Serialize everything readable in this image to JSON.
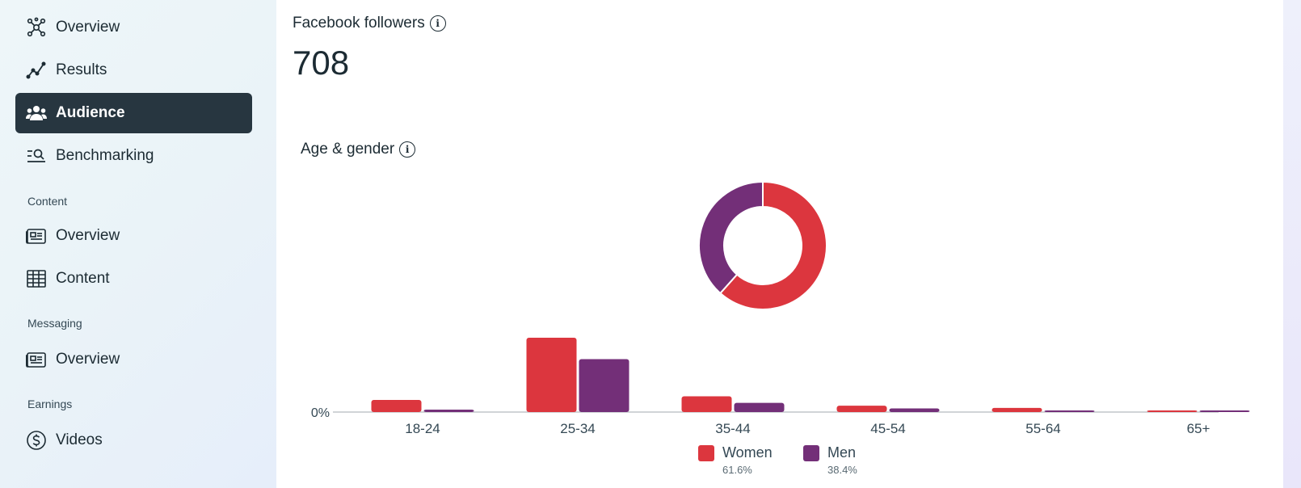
{
  "sidebar": {
    "items": [
      {
        "label": "Overview",
        "icon": "network-icon"
      },
      {
        "label": "Results",
        "icon": "trend-line-icon"
      },
      {
        "label": "Audience",
        "icon": "people-icon",
        "active": true
      },
      {
        "label": "Benchmarking",
        "icon": "search-list-icon"
      }
    ],
    "sections": [
      {
        "label": "Content",
        "items": [
          {
            "label": "Overview",
            "icon": "news-feed-icon"
          },
          {
            "label": "Content",
            "icon": "table-grid-icon"
          }
        ]
      },
      {
        "label": "Messaging",
        "items": [
          {
            "label": "Overview",
            "icon": "news-feed-icon"
          }
        ]
      },
      {
        "label": "Earnings",
        "items": [
          {
            "label": "Videos",
            "icon": "dollar-circle-icon"
          }
        ]
      }
    ]
  },
  "main": {
    "followers_title": "Facebook followers",
    "followers_count": "708",
    "age_gender_title": "Age & gender"
  },
  "colors": {
    "women": "#dc363e",
    "men": "#732f78",
    "active_nav": "#273640"
  },
  "chart_data": {
    "type": "bar",
    "title": "Age & gender",
    "categories": [
      "18-24",
      "25-34",
      "35-44",
      "45-54",
      "55-64",
      "65+"
    ],
    "series": [
      {
        "name": "Women",
        "values": [
          5.0,
          30.6,
          6.5,
          2.6,
          1.7,
          0.3
        ]
      },
      {
        "name": "Men",
        "values": [
          1.0,
          21.8,
          3.8,
          1.5,
          0.5,
          0.2
        ]
      }
    ],
    "ylim": [
      0,
      30.6
    ],
    "y_tick_label": "0%",
    "donut": {
      "slices": [
        {
          "name": "Women",
          "value": 61.6,
          "label": "61.6%"
        },
        {
          "name": "Men",
          "value": 38.4,
          "label": "38.4%"
        }
      ]
    },
    "legend": "bottom-center",
    "grid": false
  }
}
